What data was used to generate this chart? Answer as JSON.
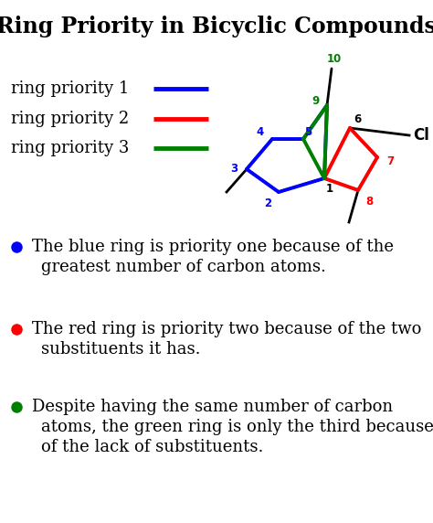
{
  "title": "Ring Priority in Bicyclic Compounds",
  "title_fontsize": 17,
  "title_fontweight": "bold",
  "bg_color": "#ffffff",
  "legend_items": [
    {
      "label": "ring priority 1",
      "color": "#0000ff"
    },
    {
      "label": "ring priority 2",
      "color": "#ff0000"
    },
    {
      "label": "ring priority 3",
      "color": "#008000"
    }
  ],
  "bullet_points": [
    {
      "color": "#0000ff",
      "lines": [
        "The blue ring is priority one because of the",
        "greatest number of carbon atoms."
      ]
    },
    {
      "color": "#ff0000",
      "lines": [
        "The red ring is priority two because of the two",
        "substituents it has."
      ]
    },
    {
      "color": "#008000",
      "lines": [
        "Despite having the same number of carbon",
        "atoms, the green ring is only the third because",
        "of the lack of substituents."
      ]
    }
  ],
  "font_family": "serif",
  "body_fontsize": 13,
  "legend_fontsize": 13,
  "num_colors": {
    "1": "#000000",
    "2": "#0000ff",
    "3": "#0000ff",
    "4": "#0000ff",
    "5": "#0000ff",
    "6": "#000000",
    "7": "#ff0000",
    "8": "#ff0000",
    "9": "#008000",
    "10": "#008000"
  }
}
